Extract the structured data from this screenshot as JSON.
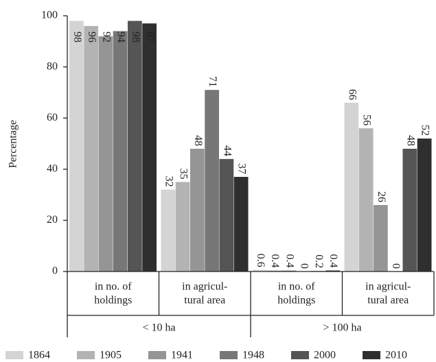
{
  "chart_data": {
    "type": "bar",
    "y_label": "Percentage",
    "categories": [
      [
        "in no. of",
        "holdings"
      ],
      [
        "in agricul-",
        "tural area"
      ],
      [
        "in no. of",
        "holdings"
      ],
      [
        "in agricul-",
        "tural area"
      ]
    ],
    "group_labels": [
      "< 10 ha",
      "> 100 ha"
    ],
    "series": [
      {
        "name": "1864",
        "color": "#d4d4d4",
        "values": [
          98,
          32,
          0.6,
          66
        ]
      },
      {
        "name": "1905",
        "color": "#b3b3b3",
        "values": [
          96,
          35,
          0.4,
          56
        ]
      },
      {
        "name": "1941",
        "color": "#959595",
        "values": [
          92,
          48,
          0.4,
          26
        ]
      },
      {
        "name": "1948",
        "color": "#777777",
        "values": [
          94,
          71,
          0,
          0
        ]
      },
      {
        "name": "2000",
        "color": "#555555",
        "values": [
          98,
          44,
          0.2,
          48
        ]
      },
      {
        "name": "2010",
        "color": "#2f2f2f",
        "values": [
          97,
          37,
          0.4,
          52
        ]
      }
    ],
    "ylim": [
      0,
      100
    ],
    "yticks": [
      0,
      20,
      40,
      60,
      80,
      100
    ],
    "grid": false,
    "legend": "bottom"
  }
}
